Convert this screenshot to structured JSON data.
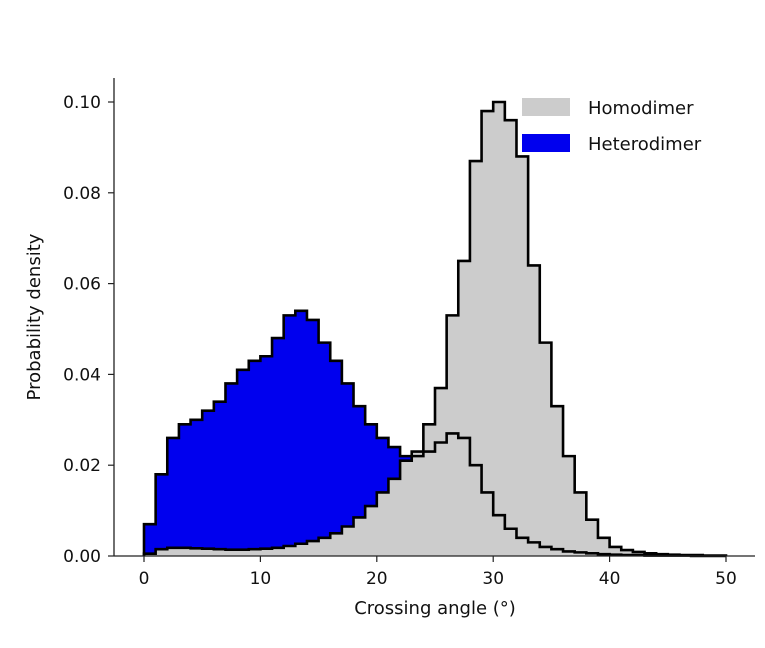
{
  "chart_data": {
    "type": "histogram",
    "title": "",
    "xlabel": "Crossing angle (°)",
    "ylabel": "Probability density",
    "xlim": [
      0,
      50
    ],
    "ylim": [
      0,
      0.1
    ],
    "xticks": [
      "0",
      "10",
      "20",
      "30",
      "40",
      "50"
    ],
    "yticks": [
      "0.00",
      "0.02",
      "0.04",
      "0.06",
      "0.08",
      "0.10"
    ],
    "bin_width": 1,
    "bin_start": 0,
    "legend_position": "top-right",
    "series": [
      {
        "name": "Homodimer",
        "color": "#cccccc",
        "edge_color": "#000000",
        "values": [
          0.0005,
          0.0015,
          0.0018,
          0.0018,
          0.0017,
          0.0016,
          0.0015,
          0.0014,
          0.0014,
          0.0015,
          0.0016,
          0.0018,
          0.0022,
          0.0027,
          0.0033,
          0.004,
          0.005,
          0.0065,
          0.0085,
          0.011,
          0.014,
          0.017,
          0.021,
          0.023,
          0.029,
          0.037,
          0.053,
          0.065,
          0.087,
          0.098,
          0.1,
          0.096,
          0.088,
          0.064,
          0.047,
          0.033,
          0.022,
          0.014,
          0.008,
          0.004,
          0.002,
          0.0013,
          0.0009,
          0.0006,
          0.0004,
          0.0003,
          0.0002,
          0.0002,
          0.0001,
          0.0001
        ]
      },
      {
        "name": "Heterodimer",
        "color": "#0000ee",
        "edge_color": "#000000",
        "values": [
          0.007,
          0.018,
          0.026,
          0.029,
          0.03,
          0.032,
          0.034,
          0.038,
          0.041,
          0.043,
          0.044,
          0.048,
          0.053,
          0.054,
          0.052,
          0.047,
          0.043,
          0.038,
          0.033,
          0.029,
          0.026,
          0.024,
          0.022,
          0.022,
          0.023,
          0.025,
          0.027,
          0.026,
          0.02,
          0.014,
          0.009,
          0.006,
          0.004,
          0.003,
          0.002,
          0.0015,
          0.001,
          0.0008,
          0.0006,
          0.0004,
          0.0003,
          0.0002,
          0.0002,
          0.0001,
          0.0001,
          0.0001,
          0.0001,
          0.0,
          0.0,
          0.0
        ]
      }
    ]
  }
}
